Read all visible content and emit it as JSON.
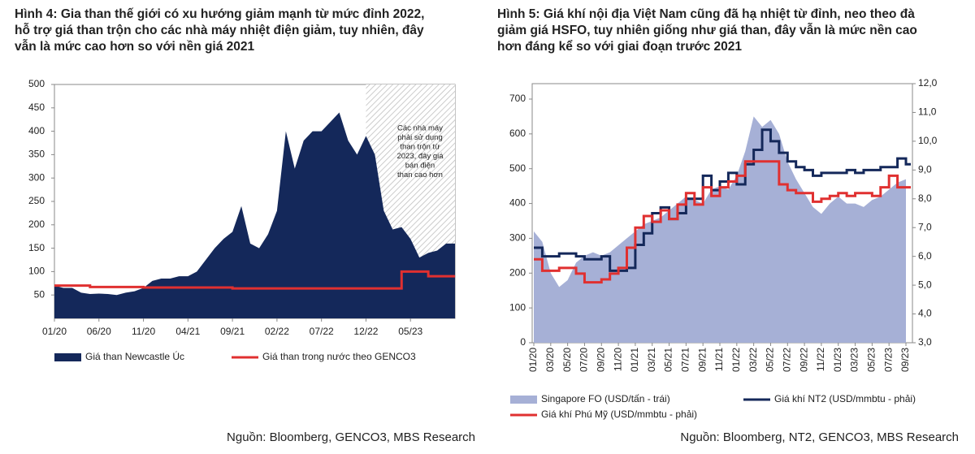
{
  "chart_data": [
    {
      "type": "area",
      "title": [
        "Hình 4: Gia than thế giới có xu hướng giảm mạnh từ mức đỉnh 2022,",
        "hỗ trợ giá than trộn cho các nhà máy nhiệt điện giảm, tuy nhiên, đây",
        "vẫn là mức cao hơn so với nền giá 2021"
      ],
      "categories": [
        "01/20",
        null,
        null,
        null,
        null,
        "06/20",
        null,
        null,
        null,
        null,
        "11/20",
        null,
        null,
        null,
        null,
        "04/21",
        null,
        null,
        null,
        null,
        "09/21",
        null,
        null,
        null,
        null,
        "02/22",
        null,
        null,
        null,
        null,
        "07/22",
        null,
        null,
        null,
        null,
        "12/22",
        null,
        null,
        null,
        null,
        "05/23",
        null,
        null,
        null,
        null,
        null
      ],
      "ylim": [
        0,
        500
      ],
      "yticks": [
        50,
        100,
        150,
        200,
        250,
        300,
        350,
        400,
        450,
        500
      ],
      "series": [
        {
          "name": "Giá than Newcastle Úc",
          "kind": "area",
          "color": "#14285a",
          "values": [
            70,
            65,
            65,
            55,
            52,
            53,
            52,
            50,
            55,
            58,
            65,
            80,
            85,
            85,
            90,
            90,
            100,
            125,
            150,
            170,
            185,
            240,
            160,
            150,
            180,
            230,
            400,
            320,
            380,
            400,
            400,
            420,
            440,
            380,
            350,
            390,
            350,
            230,
            190,
            195,
            170,
            130,
            140,
            145,
            160,
            160
          ]
        },
        {
          "name": "Giá than trong nước theo GENCO3",
          "kind": "step",
          "color": "#e03030",
          "values": [
            70,
            70,
            70,
            70,
            67,
            67,
            67,
            67,
            67,
            67,
            66,
            66,
            66,
            66,
            66,
            66,
            66,
            66,
            66,
            66,
            64,
            64,
            64,
            64,
            64,
            64,
            64,
            64,
            64,
            64,
            64,
            64,
            64,
            64,
            64,
            64,
            64,
            64,
            64,
            100,
            100,
            100,
            90,
            90,
            90,
            90
          ]
        }
      ],
      "shaded_from": "12/22",
      "annotation": [
        "Các nhà máy",
        "phải sử dụng",
        "than trộn từ",
        "2023, đây giá",
        "bán điện",
        "than cao hơn"
      ],
      "source": "Nguồn: Bloomberg, GENCO3, MBS Research"
    },
    {
      "type": "area",
      "title": [
        "Hình 5: Giá khí nội địa Việt Nam cũng đã hạ nhiệt từ đỉnh, neo theo đà",
        "giảm giá HSFO, tuy nhiên giống như giá than, đây vẫn là mức nền cao",
        "hơn đáng kể so với giai đoạn trước 2021"
      ],
      "categories": [
        "01/20",
        null,
        "03/20",
        null,
        "05/20",
        null,
        "07/20",
        null,
        "09/20",
        null,
        "11/20",
        null,
        "01/21",
        null,
        "03/21",
        null,
        "05/21",
        null,
        "07/21",
        null,
        "09/21",
        null,
        "11/21",
        null,
        "01/22",
        null,
        "03/22",
        null,
        "05/22",
        null,
        "07/22",
        null,
        "09/22",
        null,
        "11/22",
        null,
        "01/23",
        null,
        "03/23",
        null,
        "05/23",
        null,
        "07/23",
        null,
        "09/23"
      ],
      "ylim": [
        0,
        700
      ],
      "yticks": [
        0,
        100,
        200,
        300,
        400,
        500,
        600,
        700
      ],
      "y2lim": [
        3,
        12
      ],
      "y2ticks": [
        {
          "value": 3,
          "label": "3,0"
        },
        {
          "value": 4,
          "label": "4,0"
        },
        {
          "value": 5,
          "label": "5,0"
        },
        {
          "value": 6,
          "label": "6,0"
        },
        {
          "value": 7,
          "label": "7,0"
        },
        {
          "value": 8,
          "label": "8,0"
        },
        {
          "value": 9,
          "label": "9,0"
        },
        {
          "value": 10,
          "label": "10,0"
        },
        {
          "value": 11,
          "label": "11,0"
        },
        {
          "value": 12,
          "label": "12,0"
        }
      ],
      "series": [
        {
          "name": "Singapore FO (USD/tấn - trái)",
          "kind": "area",
          "color": "#a6b0d6",
          "values": [
            320,
            290,
            200,
            160,
            180,
            230,
            250,
            260,
            250,
            260,
            280,
            300,
            320,
            340,
            350,
            360,
            380,
            400,
            420,
            410,
            400,
            440,
            450,
            440,
            480,
            550,
            650,
            620,
            640,
            600,
            520,
            470,
            430,
            390,
            370,
            400,
            420,
            400,
            400,
            390,
            410,
            420,
            440,
            460,
            470
          ]
        },
        {
          "name": "Giá khí NT2 (USD/mmbtu - phải)",
          "kind": "step",
          "axis": "y2",
          "color": "#14285a",
          "values": [
            6.3,
            6.0,
            6.0,
            6.1,
            6.1,
            6.0,
            5.9,
            5.9,
            6.0,
            5.5,
            5.5,
            5.6,
            6.4,
            6.8,
            7.5,
            7.7,
            7.3,
            7.5,
            8.0,
            8.0,
            8.8,
            8.3,
            8.6,
            8.9,
            8.5,
            9.2,
            9.7,
            10.4,
            10.0,
            9.6,
            9.3,
            9.1,
            9.0,
            8.8,
            8.9,
            8.9,
            8.9,
            9.0,
            8.9,
            9.0,
            9.0,
            9.1,
            9.1,
            9.4,
            9.2
          ]
        },
        {
          "name": "Giá khí Phú Mỹ (USD/mmbtu - phải)",
          "kind": "step",
          "axis": "y2",
          "color": "#e03030",
          "values": [
            5.9,
            5.5,
            5.5,
            5.6,
            5.6,
            5.4,
            5.1,
            5.1,
            5.2,
            5.4,
            5.6,
            6.3,
            7.0,
            7.4,
            7.2,
            7.6,
            7.3,
            7.8,
            8.2,
            7.8,
            8.4,
            8.1,
            8.4,
            8.6,
            8.8,
            9.3,
            9.3,
            9.3,
            9.3,
            8.5,
            8.3,
            8.2,
            8.2,
            7.9,
            8.0,
            8.1,
            8.2,
            8.1,
            8.2,
            8.2,
            8.1,
            8.4,
            8.8,
            8.4,
            8.4
          ]
        }
      ],
      "source": "Nguồn: Bloomberg, NT2, GENCO3, MBS Research"
    }
  ]
}
